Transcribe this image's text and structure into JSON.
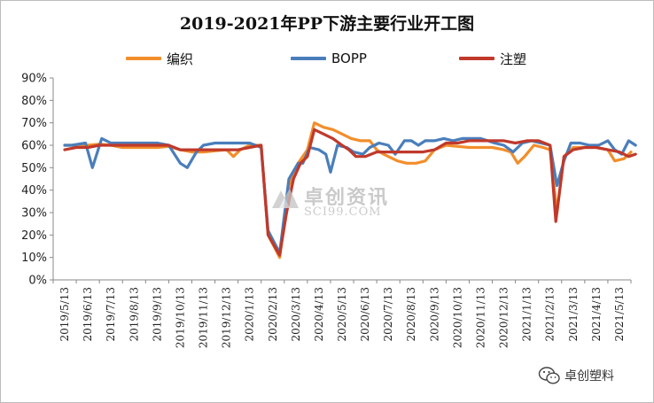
{
  "chart_data": {
    "type": "line",
    "title": "2019-2021年PP下游主要行业开工图",
    "xlabel": "",
    "ylabel": "",
    "ylim": [
      0,
      90
    ],
    "y_ticks": [
      "0%",
      "10%",
      "20%",
      "30%",
      "40%",
      "50%",
      "60%",
      "70%",
      "80%",
      "90%"
    ],
    "x_ticks": [
      "2019/5/13",
      "2019/6/13",
      "2019/7/13",
      "2019/8/13",
      "2019/9/13",
      "2019/10/13",
      "2019/11/13",
      "2019/12/13",
      "2020/1/13",
      "2020/2/13",
      "2020/3/13",
      "2020/4/13",
      "2020/5/13",
      "2020/6/13",
      "2020/7/13",
      "2020/8/13",
      "2020/9/13",
      "2020/10/13",
      "2020/11/13",
      "2020/12/13",
      "2021/1/13",
      "2021/2/13",
      "2021/3/13",
      "2021/4/13",
      "2021/5/13"
    ],
    "legend_position": "top",
    "grid": false,
    "series": [
      {
        "name": "编织",
        "color": "#f28e2b",
        "points": [
          [
            0,
            60
          ],
          [
            0.5,
            60
          ],
          [
            1,
            60
          ],
          [
            1.5,
            60.5
          ],
          [
            2,
            60
          ],
          [
            2.5,
            59
          ],
          [
            3,
            59
          ],
          [
            3.5,
            59
          ],
          [
            4,
            59
          ],
          [
            4.5,
            59.5
          ],
          [
            5,
            58
          ],
          [
            5.5,
            57
          ],
          [
            6,
            57
          ],
          [
            6.5,
            57.5
          ],
          [
            7,
            58
          ],
          [
            7.3,
            55
          ],
          [
            7.6,
            58
          ],
          [
            8,
            60
          ],
          [
            8.5,
            60
          ],
          [
            8.8,
            20
          ],
          [
            9.3,
            10
          ],
          [
            9.7,
            42
          ],
          [
            10.1,
            52
          ],
          [
            10.5,
            58
          ],
          [
            10.8,
            70
          ],
          [
            11.2,
            68
          ],
          [
            11.6,
            67
          ],
          [
            12,
            65
          ],
          [
            12.4,
            63
          ],
          [
            12.8,
            62
          ],
          [
            13.2,
            62
          ],
          [
            13.5,
            58
          ],
          [
            13.8,
            56
          ],
          [
            14,
            55
          ],
          [
            14.4,
            53
          ],
          [
            14.8,
            52
          ],
          [
            15.2,
            52
          ],
          [
            15.6,
            53
          ],
          [
            16,
            58
          ],
          [
            16.5,
            60
          ],
          [
            17,
            59.5
          ],
          [
            17.5,
            59
          ],
          [
            18,
            59
          ],
          [
            18.5,
            59
          ],
          [
            19,
            58
          ],
          [
            19.3,
            57
          ],
          [
            19.6,
            52
          ],
          [
            19.9,
            55
          ],
          [
            20.3,
            60
          ],
          [
            20.7,
            59
          ],
          [
            21,
            58
          ],
          [
            21.3,
            30
          ],
          [
            21.6,
            55
          ],
          [
            22,
            59
          ],
          [
            22.5,
            59
          ],
          [
            23,
            59
          ],
          [
            23.5,
            58
          ],
          [
            23.8,
            53
          ],
          [
            24.2,
            54
          ],
          [
            24.5,
            57
          ]
        ]
      },
      {
        "name": "BOPP",
        "color": "#4a7ebb",
        "points": [
          [
            0,
            60
          ],
          [
            0.3,
            60
          ],
          [
            0.9,
            61
          ],
          [
            1.2,
            50
          ],
          [
            1.6,
            63
          ],
          [
            2,
            61
          ],
          [
            2.5,
            61
          ],
          [
            3,
            61
          ],
          [
            3.5,
            61
          ],
          [
            4,
            61
          ],
          [
            4.5,
            60
          ],
          [
            5,
            52
          ],
          [
            5.3,
            50
          ],
          [
            5.7,
            57
          ],
          [
            6,
            60
          ],
          [
            6.5,
            61
          ],
          [
            7,
            61
          ],
          [
            7.5,
            61
          ],
          [
            8,
            61
          ],
          [
            8.5,
            59
          ],
          [
            8.8,
            22
          ],
          [
            9.3,
            12
          ],
          [
            9.7,
            45
          ],
          [
            10.1,
            52
          ],
          [
            10.3,
            52
          ],
          [
            10.6,
            59
          ],
          [
            11,
            58
          ],
          [
            11.3,
            56
          ],
          [
            11.5,
            48
          ],
          [
            11.8,
            60
          ],
          [
            12.2,
            59
          ],
          [
            12.5,
            57
          ],
          [
            12.9,
            56
          ],
          [
            13.2,
            59
          ],
          [
            13.6,
            61
          ],
          [
            14,
            60
          ],
          [
            14.3,
            56
          ],
          [
            14.7,
            62
          ],
          [
            15,
            62
          ],
          [
            15.3,
            60
          ],
          [
            15.6,
            62
          ],
          [
            16,
            62
          ],
          [
            16.4,
            63
          ],
          [
            16.8,
            62
          ],
          [
            17.2,
            63
          ],
          [
            17.6,
            63
          ],
          [
            18,
            63
          ],
          [
            18.3,
            62
          ],
          [
            18.6,
            61
          ],
          [
            19,
            60
          ],
          [
            19.4,
            57
          ],
          [
            19.8,
            61
          ],
          [
            20.2,
            62
          ],
          [
            20.6,
            61
          ],
          [
            21,
            60
          ],
          [
            21.3,
            42
          ],
          [
            21.6,
            53
          ],
          [
            21.9,
            61
          ],
          [
            22.3,
            61
          ],
          [
            22.7,
            60
          ],
          [
            23.1,
            60
          ],
          [
            23.5,
            62
          ],
          [
            23.8,
            58
          ],
          [
            24.1,
            56
          ],
          [
            24.4,
            62
          ],
          [
            24.7,
            60
          ]
        ]
      },
      {
        "name": "注塑",
        "color": "#c0392b",
        "points": [
          [
            0,
            58
          ],
          [
            0.5,
            59
          ],
          [
            1,
            59
          ],
          [
            1.5,
            60
          ],
          [
            2,
            60
          ],
          [
            2.5,
            60
          ],
          [
            3,
            60
          ],
          [
            3.5,
            60
          ],
          [
            4,
            60
          ],
          [
            4.5,
            60
          ],
          [
            5,
            58
          ],
          [
            5.5,
            58
          ],
          [
            6,
            58
          ],
          [
            6.5,
            58
          ],
          [
            7,
            58
          ],
          [
            7.5,
            58
          ],
          [
            8,
            59
          ],
          [
            8.5,
            60
          ],
          [
            8.8,
            20
          ],
          [
            9.3,
            11
          ],
          [
            9.6,
            30
          ],
          [
            9.9,
            45
          ],
          [
            10.2,
            52
          ],
          [
            10.5,
            55
          ],
          [
            10.8,
            67
          ],
          [
            11.2,
            65
          ],
          [
            11.6,
            63
          ],
          [
            12,
            60
          ],
          [
            12.3,
            58
          ],
          [
            12.6,
            55
          ],
          [
            13,
            55
          ],
          [
            13.5,
            57
          ],
          [
            14,
            57
          ],
          [
            14.5,
            57
          ],
          [
            15,
            57
          ],
          [
            15.5,
            57
          ],
          [
            16,
            58
          ],
          [
            16.5,
            61
          ],
          [
            17,
            61
          ],
          [
            17.5,
            62
          ],
          [
            18,
            62
          ],
          [
            18.5,
            62
          ],
          [
            19,
            62
          ],
          [
            19.5,
            61
          ],
          [
            20,
            62
          ],
          [
            20.5,
            62
          ],
          [
            21,
            60
          ],
          [
            21.25,
            26
          ],
          [
            21.6,
            55
          ],
          [
            22,
            58
          ],
          [
            22.5,
            59
          ],
          [
            23,
            59
          ],
          [
            23.5,
            58
          ],
          [
            24,
            57
          ],
          [
            24.4,
            55
          ],
          [
            24.7,
            56
          ]
        ]
      }
    ]
  },
  "watermark": {
    "name": "卓创资讯",
    "site": "SCI99.COM"
  },
  "footer": {
    "brand": "卓创塑料"
  }
}
